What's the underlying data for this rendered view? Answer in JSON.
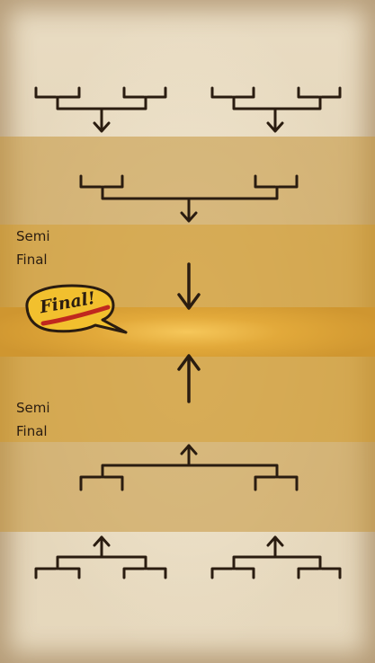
{
  "rounds": {
    "semi_top": {
      "line1": "Semi",
      "line2": "Final"
    },
    "semi_bottom": {
      "line1": "Semi",
      "line2": "Final"
    },
    "final_badge": "Final!"
  },
  "colors": {
    "ink": "#2a1c10",
    "band_outer": "#c4963c",
    "band_semi": "#cd9628",
    "final_glow": "#f6c75a",
    "badge_fill": "#f2c02e",
    "badge_stripe": "#c0281e"
  }
}
